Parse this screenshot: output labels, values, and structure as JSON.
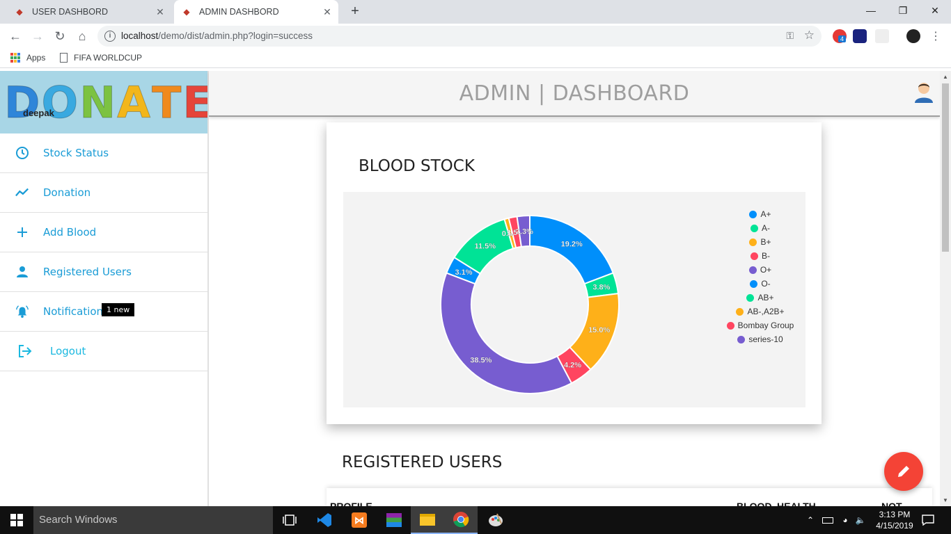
{
  "browser": {
    "tabs": [
      {
        "title": "USER DASHBORD",
        "active": false
      },
      {
        "title": "ADMIN DASHBORD",
        "active": true
      }
    ],
    "url_host": "localhost",
    "url_path": "/demo/dist/admin.php?login=success",
    "bookmarks": [
      {
        "label": "Apps",
        "icon": "apps-grid-icon"
      },
      {
        "label": "FIFA WORLDCUP",
        "icon": "page-icon"
      }
    ],
    "extension_badge": "4"
  },
  "sidebar": {
    "banner_text": "DONATE",
    "username": "deepak",
    "items": [
      {
        "label": "Stock Status",
        "icon": "clock-icon"
      },
      {
        "label": "Donation",
        "icon": "trend-line-icon"
      },
      {
        "label": "Add Blood",
        "icon": "plus-icon"
      },
      {
        "label": "Registered Users",
        "icon": "person-icon"
      },
      {
        "label": "Notifications",
        "icon": "bell-icon",
        "badge": "1 new"
      },
      {
        "label": "Logout",
        "icon": "logout-icon"
      }
    ]
  },
  "header": {
    "title": "ADMIN | DASHBOARD"
  },
  "blood_stock": {
    "title": "BLOOD STOCK"
  },
  "registered_users": {
    "title": "REGISTERED USERS",
    "columns": [
      "PROFILE",
      "BLOOD",
      "HEALTH",
      "NOT"
    ]
  },
  "chart_data": {
    "type": "pie",
    "variant": "donut",
    "legend_position": "right",
    "labels": [
      "A+",
      "A-",
      "B+",
      "B-",
      "O+",
      "O-",
      "AB+",
      "AB-,A2B+",
      "Bombay Group",
      "series-10"
    ],
    "values": [
      19.2,
      3.8,
      15.0,
      4.2,
      38.5,
      3.1,
      11.5,
      0.8,
      1.5,
      2.3
    ],
    "value_labels": [
      "19.2%",
      "3.8%",
      "15.0%",
      "4.2%",
      "38.5%",
      "3.1%",
      "11.5%",
      "0.8%",
      "1.5%",
      "2.3%"
    ],
    "colors": [
      "#008ffb",
      "#00e396",
      "#feb019",
      "#ff4560",
      "#775dd0",
      "#008ffb",
      "#00e396",
      "#feb019",
      "#ff4560",
      "#775dd0"
    ]
  },
  "taskbar": {
    "search_placeholder": "Search Windows",
    "time": "3:13 PM",
    "date": "4/15/2019"
  }
}
